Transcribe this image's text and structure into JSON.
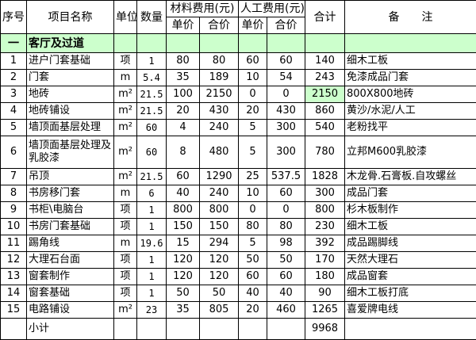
{
  "headers": {
    "seq": "序号",
    "name": "项目名称",
    "unit": "单位",
    "qty": "数量",
    "material": "材料费用(元)",
    "labor": "人工费用(元)",
    "total": "合计",
    "remark": "备　　注",
    "unit_price": "单价",
    "subtotal_price": "合价"
  },
  "section": {
    "seq": "一",
    "name": "客厅及过道"
  },
  "highlight_color": "#ccffcc",
  "rows": [
    {
      "seq": "1",
      "name": "进户门套基础",
      "unit": "项",
      "qty": "1",
      "m_price": "80",
      "m_sum": "80",
      "l_price": "60",
      "l_sum": "60",
      "total": "140",
      "remark": "细木工板"
    },
    {
      "seq": "2",
      "name": "门套",
      "unit": "m",
      "qty": "5.4",
      "m_price": "35",
      "m_sum": "189",
      "l_price": "10",
      "l_sum": "54",
      "total": "243",
      "remark": "免漆成品门套"
    },
    {
      "seq": "3",
      "name": "地砖",
      "unit": "m²",
      "qty": "21.5",
      "m_price": "100",
      "m_sum": "2150",
      "l_price": "0",
      "l_sum": "0",
      "total": "2150",
      "remark": "800X800地砖"
    },
    {
      "seq": "4",
      "name": "地砖铺设",
      "unit": "m²",
      "qty": "21.5",
      "m_price": "20",
      "m_sum": "430",
      "l_price": "20",
      "l_sum": "430",
      "total": "860",
      "remark": "黄沙/水泥/人工"
    },
    {
      "seq": "5",
      "name": "墙顶面基层处理",
      "unit": "m²",
      "qty": "60",
      "m_price": "4",
      "m_sum": "240",
      "l_price": "5",
      "l_sum": "300",
      "total": "540",
      "remark": "老粉找平"
    },
    {
      "seq": "6",
      "name": "墙顶面基层处理及乳胶漆",
      "unit": "m²",
      "qty": "60",
      "m_price": "8",
      "m_sum": "480",
      "l_price": "5",
      "l_sum": "300",
      "total": "780",
      "remark": "立邦M600乳胶漆"
    },
    {
      "seq": "7",
      "name": "吊顶",
      "unit": "m²",
      "qty": "21.5",
      "m_price": "60",
      "m_sum": "1290",
      "l_price": "25",
      "l_sum": "537.5",
      "total": "1828",
      "remark": "木龙骨.石膏板.自攻螺丝"
    },
    {
      "seq": "8",
      "name": "书房移门套",
      "unit": "m",
      "qty": "6",
      "m_price": "40",
      "m_sum": "240",
      "l_price": "10",
      "l_sum": "60",
      "total": "300",
      "remark": "成品门套"
    },
    {
      "seq": "9",
      "name": "书柜\\电脑台",
      "unit": "项",
      "qty": "1",
      "m_price": "800",
      "m_sum": "800",
      "l_price": "0",
      "l_sum": "0",
      "total": "800",
      "remark": "杉木板制作"
    },
    {
      "seq": "10",
      "name": "书房门套基础",
      "unit": "项",
      "qty": "1",
      "m_price": "150",
      "m_sum": "150",
      "l_price": "80",
      "l_sum": "80",
      "total": "230",
      "remark": "细木工板"
    },
    {
      "seq": "11",
      "name": "踢角线",
      "unit": "m",
      "qty": "19.6",
      "m_price": "15",
      "m_sum": "294",
      "l_price": "5",
      "l_sum": "98",
      "total": "392",
      "remark": "成品踢脚线"
    },
    {
      "seq": "12",
      "name": "大理石台面",
      "unit": "项",
      "qty": "1",
      "m_price": "120",
      "m_sum": "120",
      "l_price": "50",
      "l_sum": "50",
      "total": "170",
      "remark": "天然大理石"
    },
    {
      "seq": "13",
      "name": "窗套制作",
      "unit": "项",
      "qty": "1",
      "m_price": "120",
      "m_sum": "120",
      "l_price": "60",
      "l_sum": "60",
      "total": "180",
      "remark": "成品窗套"
    },
    {
      "seq": "14",
      "name": "窗套基础",
      "unit": "项",
      "qty": "1",
      "m_price": "50",
      "m_sum": "50",
      "l_price": "40",
      "l_sum": "40",
      "total": "90",
      "remark": "细木工板打底"
    },
    {
      "seq": "15",
      "name": "电路铺设",
      "unit": "m²",
      "qty": "23",
      "m_price": "35",
      "m_sum": "805",
      "l_price": "20",
      "l_sum": "460",
      "total": "1265",
      "remark": "喜爱牌电线"
    }
  ],
  "subtotal": {
    "label": "小计",
    "total": "9968"
  }
}
